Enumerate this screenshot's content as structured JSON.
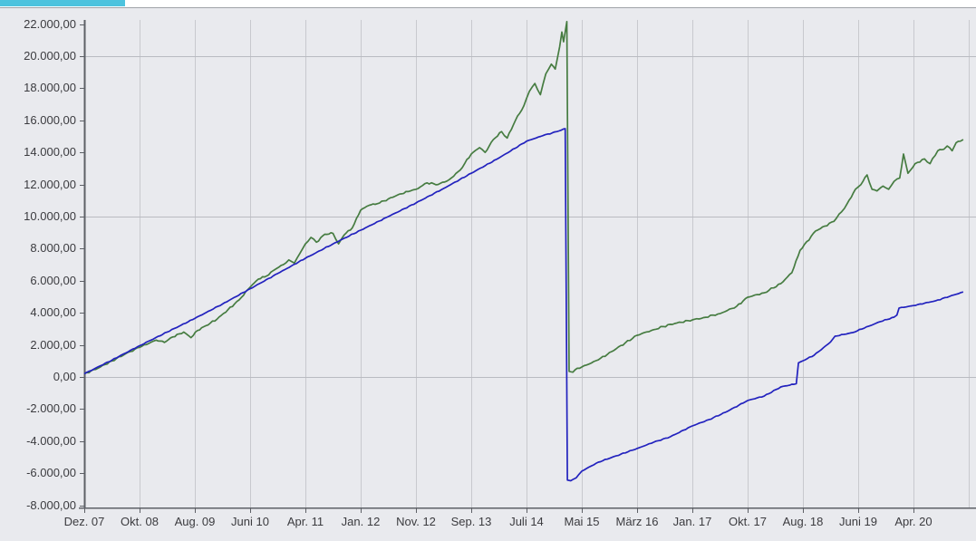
{
  "header": {
    "active_tab_indicator_color": "#4dc3de"
  },
  "chart_data": {
    "type": "line",
    "title": "",
    "legend_position": "none",
    "grid": true,
    "x_axis": {
      "tick_labels": [
        "Dez. 07",
        "Okt. 08",
        "Aug. 09",
        "Juni 10",
        "Apr. 11",
        "Jan. 12",
        "Nov. 12",
        "Sep. 13",
        "Juli 14",
        "Mai 15",
        "März 16",
        "Jan. 17",
        "Okt. 17",
        "Aug. 18",
        "Juni 19",
        "Apr. 20"
      ]
    },
    "y_axis": {
      "min": -8000,
      "max": 22000,
      "tick_step": 2000,
      "tick_labels": [
        "22.000,00",
        "20.000,00",
        "18.000,00",
        "16.000,00",
        "14.000,00",
        "12.000,00",
        "10.000,00",
        "8.000,00",
        "6.000,00",
        "4.000,00",
        "2.000,00",
        "0,00",
        "-2.000,00",
        "-4.000,00",
        "-6.000,00",
        "-8.000,00"
      ],
      "tick_values": [
        22000,
        20000,
        18000,
        16000,
        14000,
        12000,
        10000,
        8000,
        6000,
        4000,
        2000,
        0,
        -2000,
        -4000,
        -6000,
        -8000
      ],
      "major_gridline_values": [
        20000,
        10000,
        0
      ]
    },
    "colors": {
      "grid_vertical": "#c8c9ce",
      "grid_horizontal": "#b9bbc1",
      "axis": "#5d6066",
      "plot_background": "#e9eaee"
    },
    "series": [
      {
        "name": "series_green",
        "color": "#467c41",
        "points": [
          [
            0,
            200
          ],
          [
            0.25,
            550
          ],
          [
            0.5,
            1000
          ],
          [
            0.75,
            1450
          ],
          [
            1,
            1850
          ],
          [
            1.2,
            2150
          ],
          [
            1.3,
            2300
          ],
          [
            1.45,
            2150
          ],
          [
            1.6,
            2500
          ],
          [
            1.8,
            2800
          ],
          [
            1.93,
            2450
          ],
          [
            2.05,
            2900
          ],
          [
            2.2,
            3200
          ],
          [
            2.4,
            3600
          ],
          [
            2.6,
            4200
          ],
          [
            2.8,
            4800
          ],
          [
            3,
            5600
          ],
          [
            3.15,
            6100
          ],
          [
            3.3,
            6300
          ],
          [
            3.45,
            6700
          ],
          [
            3.6,
            7000
          ],
          [
            3.7,
            7300
          ],
          [
            3.8,
            7100
          ],
          [
            3.9,
            7700
          ],
          [
            4,
            8300
          ],
          [
            4.1,
            8700
          ],
          [
            4.2,
            8400
          ],
          [
            4.35,
            8900
          ],
          [
            4.5,
            8950
          ],
          [
            4.6,
            8300
          ],
          [
            4.7,
            8850
          ],
          [
            4.85,
            9300
          ],
          [
            5,
            10400
          ],
          [
            5.15,
            10700
          ],
          [
            5.3,
            10800
          ],
          [
            5.5,
            11100
          ],
          [
            5.7,
            11400
          ],
          [
            5.9,
            11600
          ],
          [
            6,
            11700
          ],
          [
            6.2,
            12100
          ],
          [
            6.4,
            12000
          ],
          [
            6.6,
            12300
          ],
          [
            6.8,
            12900
          ],
          [
            7,
            13900
          ],
          [
            7.15,
            14300
          ],
          [
            7.25,
            14000
          ],
          [
            7.4,
            14800
          ],
          [
            7.55,
            15300
          ],
          [
            7.65,
            14900
          ],
          [
            7.8,
            16000
          ],
          [
            7.95,
            16900
          ],
          [
            8.05,
            17800
          ],
          [
            8.15,
            18300
          ],
          [
            8.25,
            17600
          ],
          [
            8.35,
            18900
          ],
          [
            8.45,
            19500
          ],
          [
            8.52,
            19200
          ],
          [
            8.6,
            20600
          ],
          [
            8.64,
            21500
          ],
          [
            8.67,
            20900
          ],
          [
            8.73,
            22150
          ],
          [
            8.77,
            350
          ],
          [
            8.84,
            300
          ],
          [
            8.92,
            550
          ],
          [
            9,
            620
          ],
          [
            9.3,
            1070
          ],
          [
            9.62,
            1750
          ],
          [
            10,
            2600
          ],
          [
            10.3,
            2950
          ],
          [
            10.6,
            3280
          ],
          [
            11,
            3560
          ],
          [
            11.2,
            3700
          ],
          [
            11.5,
            3950
          ],
          [
            11.8,
            4400
          ],
          [
            12,
            4970
          ],
          [
            12.3,
            5250
          ],
          [
            12.6,
            5820
          ],
          [
            12.8,
            6500
          ],
          [
            12.95,
            7900
          ],
          [
            13.23,
            9100
          ],
          [
            13.56,
            9700
          ],
          [
            13.7,
            10300
          ],
          [
            13.8,
            10800
          ],
          [
            13.95,
            11700
          ],
          [
            14.05,
            12000
          ],
          [
            14.16,
            12600
          ],
          [
            14.25,
            11700
          ],
          [
            14.34,
            11600
          ],
          [
            14.45,
            11900
          ],
          [
            14.55,
            11700
          ],
          [
            14.65,
            12200
          ],
          [
            14.75,
            12400
          ],
          [
            14.82,
            13900
          ],
          [
            14.9,
            12700
          ],
          [
            15.03,
            13300
          ],
          [
            15.2,
            13600
          ],
          [
            15.3,
            13300
          ],
          [
            15.44,
            14100
          ],
          [
            15.55,
            14200
          ],
          [
            15.61,
            14400
          ],
          [
            15.7,
            14100
          ],
          [
            15.77,
            14600
          ],
          [
            15.85,
            14700
          ],
          [
            15.9,
            14800
          ]
        ]
      },
      {
        "name": "series_blue",
        "color": "#2222be",
        "points": [
          [
            0,
            200
          ],
          [
            0.5,
            1050
          ],
          [
            1,
            1950
          ],
          [
            1.5,
            2800
          ],
          [
            2,
            3650
          ],
          [
            2.5,
            4550
          ],
          [
            3,
            5500
          ],
          [
            3.5,
            6450
          ],
          [
            4,
            7400
          ],
          [
            4.5,
            8300
          ],
          [
            5,
            9150
          ],
          [
            5.5,
            10000
          ],
          [
            6,
            10850
          ],
          [
            6.5,
            11750
          ],
          [
            7,
            12700
          ],
          [
            7.5,
            13650
          ],
          [
            8,
            14700
          ],
          [
            8.3,
            15050
          ],
          [
            8.55,
            15300
          ],
          [
            8.7,
            15480
          ],
          [
            8.74,
            -6430
          ],
          [
            8.8,
            -6470
          ],
          [
            8.9,
            -6280
          ],
          [
            9,
            -5870
          ],
          [
            9.3,
            -5310
          ],
          [
            9.62,
            -4920
          ],
          [
            10,
            -4460
          ],
          [
            10.3,
            -4070
          ],
          [
            10.6,
            -3730
          ],
          [
            11,
            -3050
          ],
          [
            11.3,
            -2660
          ],
          [
            11.6,
            -2200
          ],
          [
            12,
            -1470
          ],
          [
            12.3,
            -1190
          ],
          [
            12.6,
            -620
          ],
          [
            12.88,
            -420
          ],
          [
            12.92,
            880
          ],
          [
            13.2,
            1350
          ],
          [
            13.5,
            2180
          ],
          [
            13.58,
            2540
          ],
          [
            13.9,
            2770
          ],
          [
            14.4,
            3450
          ],
          [
            14.65,
            3730
          ],
          [
            14.7,
            3860
          ],
          [
            14.74,
            4300
          ],
          [
            15,
            4450
          ],
          [
            15.4,
            4750
          ],
          [
            15.9,
            5300
          ]
        ]
      }
    ]
  }
}
